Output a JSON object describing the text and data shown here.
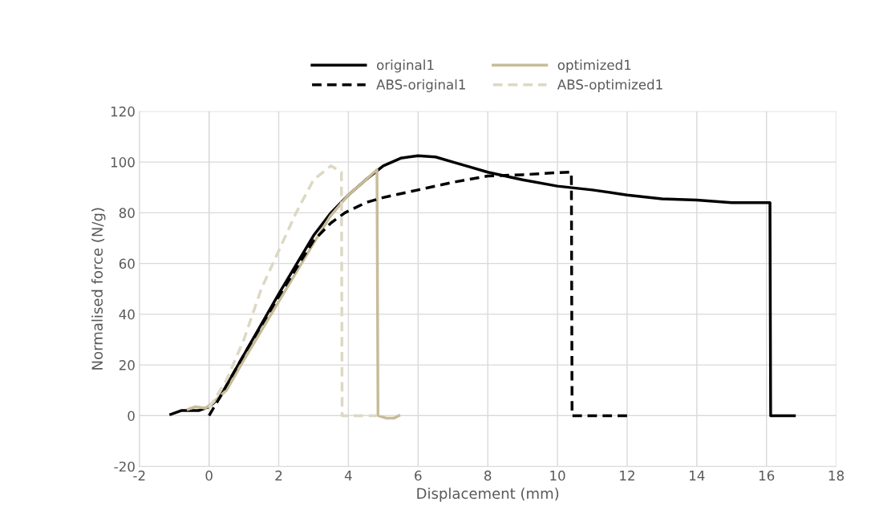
{
  "chart_data": {
    "type": "line",
    "xlabel": "Displacement (mm)",
    "ylabel": "Normalised force (N/g)",
    "xlim": [
      -2,
      18
    ],
    "xticks": [
      -2,
      0,
      2,
      4,
      6,
      8,
      10,
      12,
      14,
      16,
      18
    ],
    "ylim": [
      -20,
      120
    ],
    "yticks": [
      -20,
      0,
      20,
      40,
      60,
      80,
      100,
      120
    ],
    "grid": true,
    "legend": "top",
    "marker": "none",
    "series": [
      {
        "name": "original1",
        "color": "#000000",
        "line_style": "solid",
        "x": [
          -1.1,
          -0.8,
          -0.3,
          0,
          0.3,
          1,
          2,
          3,
          3.5,
          4,
          4.5,
          5,
          5.5,
          6,
          6.5,
          7,
          7.5,
          8,
          8.5,
          9,
          10,
          11,
          12,
          13,
          14,
          15,
          16,
          16.1,
          16.12,
          16.8
        ],
        "values": [
          0.5,
          2,
          2,
          3.5,
          7,
          24,
          48,
          71,
          80,
          87,
          93,
          98.5,
          101.5,
          102.5,
          102,
          100,
          98,
          96,
          94.5,
          93,
          90.5,
          89,
          87,
          85.5,
          85,
          84,
          84,
          84,
          0,
          0
        ]
      },
      {
        "name": "optimized1",
        "color": "#c8bc98",
        "line_style": "solid",
        "x": [
          -0.6,
          -0.4,
          -0.1,
          0.1,
          0.5,
          1,
          2,
          3,
          3.5,
          4,
          4.5,
          4.82,
          4.85,
          5.1,
          5.3,
          5.45
        ],
        "values": [
          2.5,
          3.5,
          3,
          5,
          10,
          22,
          45,
          68,
          79,
          87,
          93,
          97,
          0,
          -1,
          -1,
          0
        ]
      },
      {
        "name": "ABS-original1",
        "color": "#000000",
        "line_style": "dashed",
        "x": [
          0,
          0.3,
          1,
          2,
          3,
          3.5,
          3.9,
          4.5,
          5,
          6,
          7,
          8,
          9,
          10,
          10.4,
          10.42,
          12
        ],
        "values": [
          0,
          7,
          24,
          47,
          69,
          76,
          80,
          84,
          86,
          89,
          92,
          94.5,
          95,
          95.8,
          96,
          0,
          0
        ]
      },
      {
        "name": "ABS-optimized1",
        "color": "#ddd8c4",
        "line_style": "dashed",
        "x": [
          0,
          0.5,
          1,
          1.5,
          2,
          2.5,
          3,
          3.5,
          3.8,
          3.82,
          4.8
        ],
        "values": [
          3,
          14,
          30,
          50,
          65,
          80,
          93,
          98.5,
          96,
          0,
          0
        ]
      }
    ]
  }
}
